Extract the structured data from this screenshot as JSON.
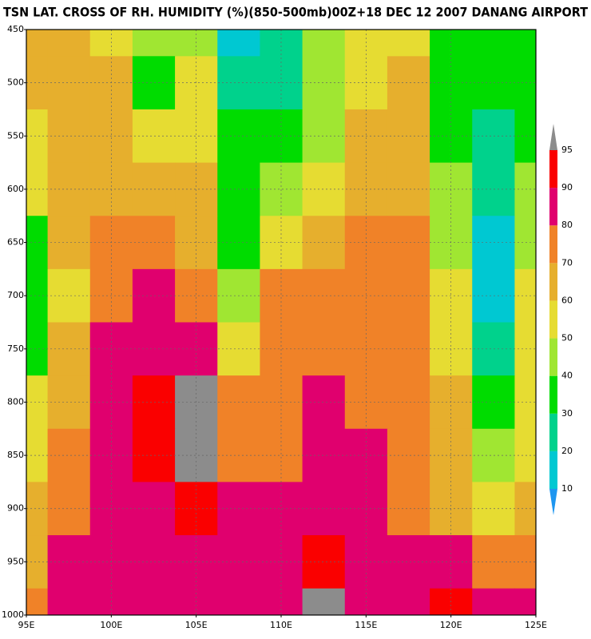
{
  "chart_data": {
    "type": "contour",
    "title": "TSN LAT. CROSS OF RH. HUMIDITY (%)(850-500mb)00Z+18 DEC 12 2007 DANANG AIRPORT",
    "x": [
      95,
      97.5,
      100,
      102.5,
      105,
      107.5,
      110,
      112.5,
      115,
      117.5,
      120,
      122.5,
      125
    ],
    "y": [
      450,
      500,
      550,
      600,
      650,
      700,
      750,
      800,
      850,
      900,
      950,
      1000
    ],
    "z": [
      [
        62,
        65,
        55,
        40,
        45,
        15,
        25,
        40,
        50,
        55,
        35,
        35,
        35
      ],
      [
        62,
        65,
        60,
        38,
        50,
        20,
        25,
        45,
        55,
        60,
        35,
        30,
        38
      ],
      [
        55,
        65,
        62,
        55,
        55,
        30,
        30,
        45,
        60,
        62,
        35,
        25,
        35
      ],
      [
        50,
        65,
        68,
        62,
        60,
        35,
        40,
        55,
        65,
        68,
        40,
        25,
        40
      ],
      [
        35,
        60,
        72,
        72,
        65,
        38,
        55,
        65,
        72,
        72,
        45,
        15,
        45
      ],
      [
        35,
        55,
        78,
        82,
        70,
        42,
        70,
        72,
        75,
        72,
        50,
        18,
        50
      ],
      [
        38,
        60,
        82,
        85,
        85,
        55,
        72,
        75,
        75,
        72,
        55,
        25,
        52
      ],
      [
        52,
        68,
        82,
        90,
        95,
        70,
        75,
        82,
        78,
        75,
        60,
        35,
        55
      ],
      [
        58,
        72,
        82,
        93,
        97,
        75,
        78,
        85,
        80,
        75,
        65,
        45,
        52
      ],
      [
        62,
        78,
        82,
        88,
        92,
        80,
        85,
        88,
        82,
        75,
        68,
        55,
        60
      ],
      [
        68,
        82,
        80,
        85,
        88,
        85,
        85,
        92,
        88,
        82,
        82,
        75,
        70
      ],
      [
        72,
        82,
        80,
        85,
        85,
        85,
        88,
        95,
        88,
        85,
        90,
        85,
        82
      ]
    ],
    "xlim": [
      95,
      125
    ],
    "ylim": [
      1000,
      450
    ],
    "xticks": [
      {
        "value": 95,
        "label": "95E"
      },
      {
        "value": 100,
        "label": "100E"
      },
      {
        "value": 105,
        "label": "105E"
      },
      {
        "value": 110,
        "label": "110E"
      },
      {
        "value": 115,
        "label": "115E"
      },
      {
        "value": 120,
        "label": "120E"
      },
      {
        "value": 125,
        "label": "125E"
      }
    ],
    "yticks": [
      450,
      500,
      550,
      600,
      650,
      700,
      750,
      800,
      850,
      900,
      950,
      1000
    ],
    "grid": true,
    "levels": [
      10,
      20,
      30,
      40,
      50,
      60,
      70,
      80,
      90,
      95
    ],
    "colors": [
      "#1e96f0",
      "#00c8d2",
      "#00d28c",
      "#00dc00",
      "#a0e632",
      "#e6dc32",
      "#e6af2d",
      "#f08228",
      "#e0006e",
      "#fa0000",
      "#8c8c8c"
    ]
  }
}
